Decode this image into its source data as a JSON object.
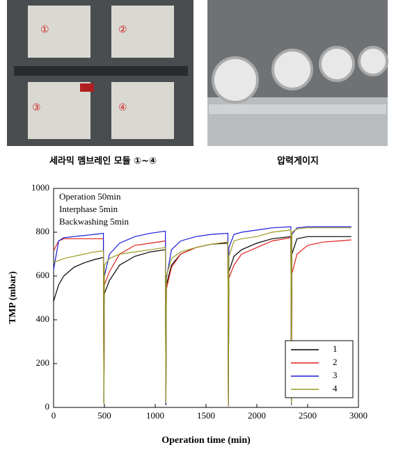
{
  "photos": [
    {
      "caption": "세라믹 멤브레인 모듈 ①~④",
      "labels": [
        "①",
        "②",
        "③",
        "④"
      ]
    },
    {
      "caption": "압력게이지"
    }
  ],
  "chart_data": {
    "type": "line",
    "xlabel": "Operation time (min)",
    "ylabel": "TMP (mbar)",
    "annotations": [
      "Operation 50min",
      "Interphase 5min",
      "Backwashing 5min"
    ],
    "x": [
      0,
      50,
      100,
      200,
      300,
      400,
      490,
      495,
      500,
      550,
      650,
      800,
      950,
      1100,
      1105,
      1110,
      1160,
      1250,
      1400,
      1550,
      1715,
      1720,
      1725,
      1775,
      1850,
      2000,
      2150,
      2335,
      2340,
      2345,
      2395,
      2500,
      2650,
      2800,
      2930
    ],
    "series": [
      {
        "name": "1",
        "color": "#000000",
        "values": [
          485,
          560,
          600,
          640,
          660,
          675,
          685,
          20,
          520,
          580,
          650,
          690,
          710,
          720,
          10,
          560,
          650,
          700,
          730,
          745,
          750,
          10,
          620,
          690,
          720,
          750,
          770,
          780,
          30,
          700,
          770,
          780,
          780,
          780,
          780
        ]
      },
      {
        "name": "2",
        "color": "#e0201c",
        "values": [
          715,
          760,
          770,
          770,
          770,
          770,
          770,
          30,
          560,
          620,
          700,
          740,
          750,
          760,
          20,
          540,
          640,
          700,
          730,
          745,
          755,
          10,
          590,
          650,
          700,
          730,
          760,
          775,
          20,
          610,
          700,
          740,
          755,
          760,
          765
        ]
      },
      {
        "name": "3",
        "color": "#1a1adc",
        "values": [
          630,
          760,
          775,
          780,
          785,
          790,
          795,
          20,
          600,
          700,
          750,
          780,
          795,
          805,
          15,
          590,
          720,
          760,
          780,
          790,
          795,
          5,
          730,
          790,
          800,
          810,
          820,
          825,
          10,
          790,
          820,
          825,
          825,
          825,
          825
        ]
      },
      {
        "name": "4",
        "color": "#9a9a20",
        "values": [
          665,
          670,
          680,
          690,
          700,
          710,
          715,
          15,
          650,
          680,
          700,
          710,
          720,
          730,
          20,
          600,
          680,
          710,
          730,
          745,
          755,
          5,
          690,
          760,
          770,
          780,
          800,
          810,
          15,
          800,
          815,
          820,
          820,
          820,
          820
        ]
      }
    ],
    "xlim": [
      0,
      3000
    ],
    "xticks": [
      0,
      500,
      1000,
      1500,
      2000,
      2500,
      3000
    ],
    "ylim": [
      0,
      1000
    ],
    "yticks": [
      0,
      200,
      400,
      600,
      800,
      1000
    ],
    "legend": "lower right"
  }
}
